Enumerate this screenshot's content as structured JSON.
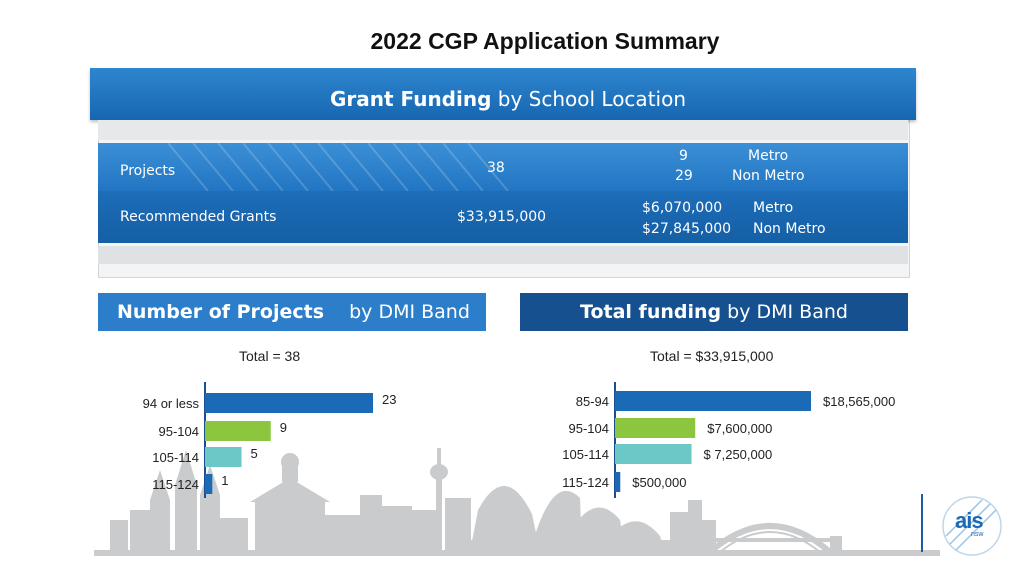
{
  "page_title": "2022 CGP Application Summary",
  "grant_funding": {
    "title_bold": "Grant Funding",
    "title_rest": "by School Location",
    "rows": [
      {
        "label": "Projects",
        "total": "38",
        "breakdown": [
          {
            "value": "9",
            "location": "Metro"
          },
          {
            "value": "29",
            "location": "Non Metro"
          }
        ]
      },
      {
        "label": "Recommended Grants",
        "total": "$33,915,000",
        "breakdown": [
          {
            "value": "$6,070,000",
            "location": "Metro"
          },
          {
            "value": "$27,845,000",
            "location": "Non Metro"
          }
        ]
      }
    ]
  },
  "projects_section": {
    "title_bold": "Number of Projects",
    "title_rest": "by DMI Band",
    "total_label": "Total = 38"
  },
  "funding_section": {
    "title_bold": "Total funding",
    "title_rest": "by DMI Band",
    "total_label": "Total = $33,915,000"
  },
  "logo": {
    "text": "ais",
    "subtext": "nsw"
  },
  "colors": {
    "blue": "#1a6ab5",
    "green": "#8cc63e",
    "teal": "#6cc8c6",
    "navy": "#17508f"
  },
  "chart_data": [
    {
      "type": "bar",
      "orientation": "horizontal",
      "title": "Number of Projects by DMI Band",
      "categories": [
        "94 or less",
        "95-104",
        "105-114",
        "115-124"
      ],
      "values": [
        23,
        9,
        5,
        1
      ],
      "value_labels": [
        "23",
        "9",
        "5",
        "1"
      ],
      "bar_colors": [
        "#1a6ab5",
        "#8cc63e",
        "#6cc8c6",
        "#1a6ab5"
      ],
      "xlim": [
        0,
        23
      ]
    },
    {
      "type": "bar",
      "orientation": "horizontal",
      "title": "Total funding by DMI Band",
      "categories": [
        "85-94",
        "95-104",
        "105-114",
        "115-124"
      ],
      "values": [
        18565000,
        7600000,
        7250000,
        500000
      ],
      "value_labels": [
        "$18,565,000",
        "$7,600,000",
        "$ 7,250,000",
        "$500,000"
      ],
      "bar_colors": [
        "#1a6ab5",
        "#8cc63e",
        "#6cc8c6",
        "#1a6ab5"
      ],
      "xlim": [
        0,
        18565000
      ]
    }
  ]
}
